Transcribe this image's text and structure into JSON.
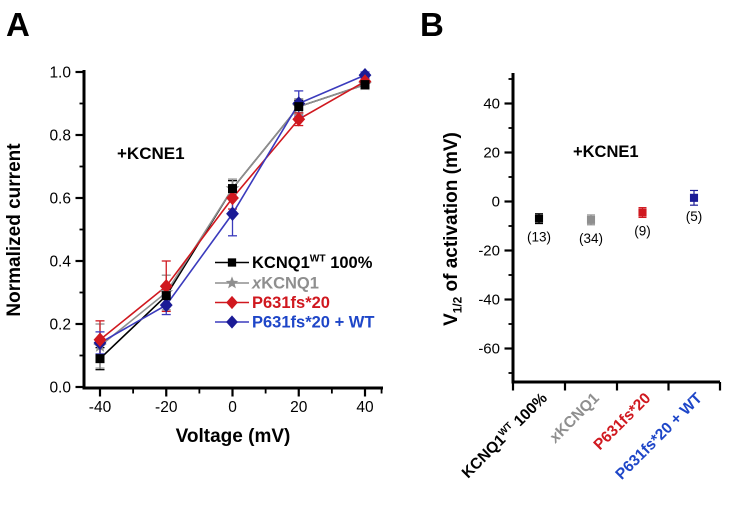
{
  "figure": {
    "panel_a_label": "A",
    "panel_b_label": "B",
    "background": "#ffffff"
  },
  "colors": {
    "black": "#000000",
    "gray": "#8f8f8f",
    "red": "#d0181f",
    "navy": "#1b1b96",
    "blue_line": "#3b3bbd",
    "blue_text": "#1e46c8"
  },
  "chart_data": [
    {
      "type": "line",
      "panel": "A",
      "annotation": "+KCNE1",
      "xlabel": "Voltage (mV)",
      "ylabel": "Normalized current",
      "x": [
        -40,
        -20,
        0,
        20,
        40
      ],
      "xticks": [
        -40,
        -20,
        0,
        20,
        40
      ],
      "xtick_labels": [
        "-40",
        "-20",
        "0",
        "20",
        "40"
      ],
      "xticks_minor": [
        -30,
        -10,
        10,
        30,
        45
      ],
      "yticks": [
        0.0,
        0.2,
        0.4,
        0.6,
        0.8,
        1.0
      ],
      "ytick_labels": [
        "0.0",
        "0.2",
        "0.4",
        "0.6",
        "0.8",
        "1.0"
      ],
      "yticks_minor": [
        0.1,
        0.3,
        0.5,
        0.7,
        0.9
      ],
      "xlim": [
        -45,
        45
      ],
      "ylim": [
        0,
        1.0
      ],
      "grid": false,
      "legend_position": "lower right",
      "series": [
        {
          "name": "KCNQ1WT 100%",
          "label_parts": [
            {
              "t": "KCNQ1"
            },
            {
              "t": "WT",
              "sup": true
            },
            {
              "t": " 100%"
            }
          ],
          "marker": "square",
          "color": "#000000",
          "line_color": "#000000",
          "text_color": "#000000",
          "values": [
            0.09,
            0.29,
            0.63,
            0.89,
            0.96
          ],
          "errors": [
            0.035,
            0.025,
            0.025,
            0.02,
            0.012
          ]
        },
        {
          "name": "xKCNQ1",
          "label_parts": [
            {
              "t": "x",
              "italic": true
            },
            {
              "t": "KCNQ1"
            }
          ],
          "marker": "star",
          "color": "#8f8f8f",
          "line_color": "#8f8f8f",
          "text_color": "#8f8f8f",
          "values": [
            0.13,
            0.3,
            0.63,
            0.89,
            0.96
          ],
          "errors": [
            0.07,
            0.055,
            0.03,
            0.025,
            0.015
          ]
        },
        {
          "name": "P631fs*20",
          "label_parts": [
            {
              "t": "P631fs*20"
            }
          ],
          "marker": "diamond",
          "color": "#d0181f",
          "line_color": "#d0181f",
          "text_color": "#d0181f",
          "values": [
            0.15,
            0.32,
            0.6,
            0.85,
            0.97
          ],
          "errors": [
            0.06,
            0.08,
            0.035,
            0.02,
            0.01
          ]
        },
        {
          "name": "P631fs*20 + WT",
          "label_parts": [
            {
              "t": "P631fs*20 + WT"
            }
          ],
          "marker": "diamond",
          "color": "#1b1b96",
          "line_color": "#3b3bbd",
          "text_color": "#1e46c8",
          "values": [
            0.14,
            0.26,
            0.55,
            0.9,
            0.99
          ],
          "errors": [
            0.035,
            0.03,
            0.07,
            0.04,
            0.01
          ]
        }
      ]
    },
    {
      "type": "scatter",
      "panel": "B",
      "annotation": "+KCNE1",
      "ylabel": "V1/2 of activation (mV)",
      "ylabel_parts": [
        {
          "t": "V"
        },
        {
          "t": "1/2",
          "sub": true
        },
        {
          "t": " of activation (mV)"
        }
      ],
      "categories": [
        "KCNQ1WT 100%",
        "xKCNQ1",
        "P631fs*20",
        "P631fs*20 + WT"
      ],
      "category_label_parts": [
        [
          {
            "t": "KCNQ1"
          },
          {
            "t": "WT",
            "sup": true
          },
          {
            "t": " 100%"
          }
        ],
        [
          {
            "t": "x",
            "italic": true
          },
          {
            "t": "KCNQ1"
          }
        ],
        [
          {
            "t": "P631fs*20"
          }
        ],
        [
          {
            "t": "P631fs*20 + WT"
          }
        ]
      ],
      "category_colors": [
        "#000000",
        "#8f8f8f",
        "#d0181f",
        "#1e46c8"
      ],
      "marker_colors": [
        "#000000",
        "#8f8f8f",
        "#d0181f",
        "#1b1b96"
      ],
      "values": [
        -7,
        -7.5,
        -4.5,
        1.5
      ],
      "errors": [
        2,
        2,
        2,
        3
      ],
      "n_labels": [
        "(13)",
        "(34)",
        "(9)",
        "(5)"
      ],
      "yticks": [
        40,
        20,
        0,
        -20,
        -40,
        -60
      ],
      "ytick_labels": [
        "40",
        "20",
        "0",
        "-20",
        "-40",
        "-60"
      ],
      "yticks_minor": [
        50,
        30,
        10,
        -10,
        -30,
        -50,
        -70
      ],
      "ylim": [
        -74,
        52
      ],
      "grid": false
    }
  ]
}
